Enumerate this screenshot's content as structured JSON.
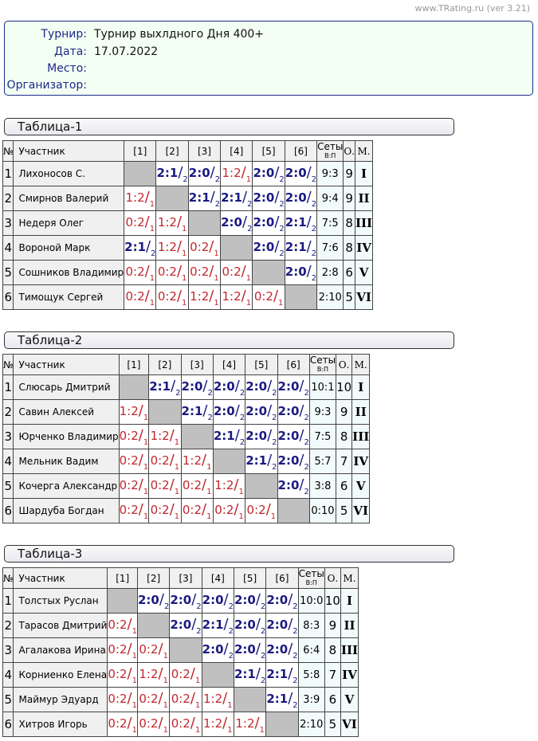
{
  "version": "www.TRating.ru (ver 3.21)",
  "info": [
    {
      "label": "Турнир:",
      "value": "Турнир выхлдного Дня 400+"
    },
    {
      "label": "Дата:",
      "value": "17.07.2022"
    },
    {
      "label": "Место:",
      "value": ""
    },
    {
      "label": "Организатор:",
      "value": ""
    }
  ],
  "header": {
    "num": "№",
    "name": "Участник",
    "cols": [
      "[1]",
      "[2]",
      "[3]",
      "[4]",
      "[5]",
      "[6]"
    ],
    "sets": "Сеты",
    "sets_sub": "В:П",
    "points": "О.",
    "place": "М."
  },
  "colors": {
    "win": "#1a1a80",
    "loss": "#c0282d"
  },
  "tables": [
    {
      "title": "Таблица-1",
      "rows": [
        {
          "n": "1",
          "name": "Лихоносов С.",
          "res": [
            "",
            "2:1/2",
            "2:0/2",
            "1:2/1",
            "2:0/2",
            "2:0/2"
          ],
          "sets": "9:3",
          "pts": "9",
          "place": "I"
        },
        {
          "n": "2",
          "name": "Смирнов Валерий",
          "res": [
            "1:2/1",
            "",
            "2:1/2",
            "2:1/2",
            "2:0/2",
            "2:0/2"
          ],
          "sets": "9:4",
          "pts": "9",
          "place": "II"
        },
        {
          "n": "3",
          "name": "Недеря Олег",
          "res": [
            "0:2/1",
            "1:2/1",
            "",
            "2:0/2",
            "2:0/2",
            "2:1/2"
          ],
          "sets": "7:5",
          "pts": "8",
          "place": "III"
        },
        {
          "n": "4",
          "name": "Вороной Марк",
          "res": [
            "2:1/2",
            "1:2/1",
            "0:2/1",
            "",
            "2:0/2",
            "2:1/2"
          ],
          "sets": "7:6",
          "pts": "8",
          "place": "IV"
        },
        {
          "n": "5",
          "name": "Сошников Владимир",
          "res": [
            "0:2/1",
            "0:2/1",
            "0:2/1",
            "0:2/1",
            "",
            "2:0/2"
          ],
          "sets": "2:8",
          "pts": "6",
          "place": "V"
        },
        {
          "n": "6",
          "name": "Тимощук Сергей",
          "res": [
            "0:2/1",
            "0:2/1",
            "1:2/1",
            "1:2/1",
            "0:2/1",
            ""
          ],
          "sets": "2:10",
          "pts": "5",
          "place": "VI"
        }
      ]
    },
    {
      "title": "Таблица-2",
      "rows": [
        {
          "n": "1",
          "name": "Слюсарь Дмитрий",
          "res": [
            "",
            "2:1/2",
            "2:0/2",
            "2:0/2",
            "2:0/2",
            "2:0/2"
          ],
          "sets": "10:1",
          "pts": "10",
          "place": "I"
        },
        {
          "n": "2",
          "name": "Савин Алексей",
          "res": [
            "1:2/1",
            "",
            "2:1/2",
            "2:0/2",
            "2:0/2",
            "2:0/2"
          ],
          "sets": "9:3",
          "pts": "9",
          "place": "II"
        },
        {
          "n": "3",
          "name": "Юрченко Владимир",
          "res": [
            "0:2/1",
            "1:2/1",
            "",
            "2:1/2",
            "2:0/2",
            "2:0/2"
          ],
          "sets": "7:5",
          "pts": "8",
          "place": "III"
        },
        {
          "n": "4",
          "name": "Мельник Вадим",
          "res": [
            "0:2/1",
            "0:2/1",
            "1:2/1",
            "",
            "2:1/2",
            "2:0/2"
          ],
          "sets": "5:7",
          "pts": "7",
          "place": "IV"
        },
        {
          "n": "5",
          "name": "Кочерга Александр",
          "res": [
            "0:2/1",
            "0:2/1",
            "0:2/1",
            "1:2/1",
            "",
            "2:0/2"
          ],
          "sets": "3:8",
          "pts": "6",
          "place": "V"
        },
        {
          "n": "6",
          "name": "Шардуба Богдан",
          "res": [
            "0:2/1",
            "0:2/1",
            "0:2/1",
            "0:2/1",
            "0:2/1",
            ""
          ],
          "sets": "0:10",
          "pts": "5",
          "place": "VI"
        }
      ]
    },
    {
      "title": "Таблица-3",
      "rows": [
        {
          "n": "1",
          "name": "Толстых Руслан",
          "res": [
            "",
            "2:0/2",
            "2:0/2",
            "2:0/2",
            "2:0/2",
            "2:0/2"
          ],
          "sets": "10:0",
          "pts": "10",
          "place": "I"
        },
        {
          "n": "2",
          "name": "Тарасов Дмитрий",
          "res": [
            "0:2/1",
            "",
            "2:0/2",
            "2:1/2",
            "2:0/2",
            "2:0/2"
          ],
          "sets": "8:3",
          "pts": "9",
          "place": "II"
        },
        {
          "n": "3",
          "name": "Агалакова Ирина",
          "res": [
            "0:2/1",
            "0:2/1",
            "",
            "2:0/2",
            "2:0/2",
            "2:0/2"
          ],
          "sets": "6:4",
          "pts": "8",
          "place": "III"
        },
        {
          "n": "4",
          "name": "Корниенко Елена",
          "res": [
            "0:2/1",
            "1:2/1",
            "0:2/1",
            "",
            "2:1/2",
            "2:1/2"
          ],
          "sets": "5:8",
          "pts": "7",
          "place": "IV"
        },
        {
          "n": "5",
          "name": "Маймур Эдуард",
          "res": [
            "0:2/1",
            "0:2/1",
            "0:2/1",
            "1:2/1",
            "",
            "2:1/2"
          ],
          "sets": "3:9",
          "pts": "6",
          "place": "V"
        },
        {
          "n": "6",
          "name": "Хитров Игорь",
          "res": [
            "0:2/1",
            "0:2/1",
            "0:2/1",
            "1:2/1",
            "1:2/1",
            ""
          ],
          "sets": "2:10",
          "pts": "5",
          "place": "VI"
        }
      ]
    }
  ]
}
